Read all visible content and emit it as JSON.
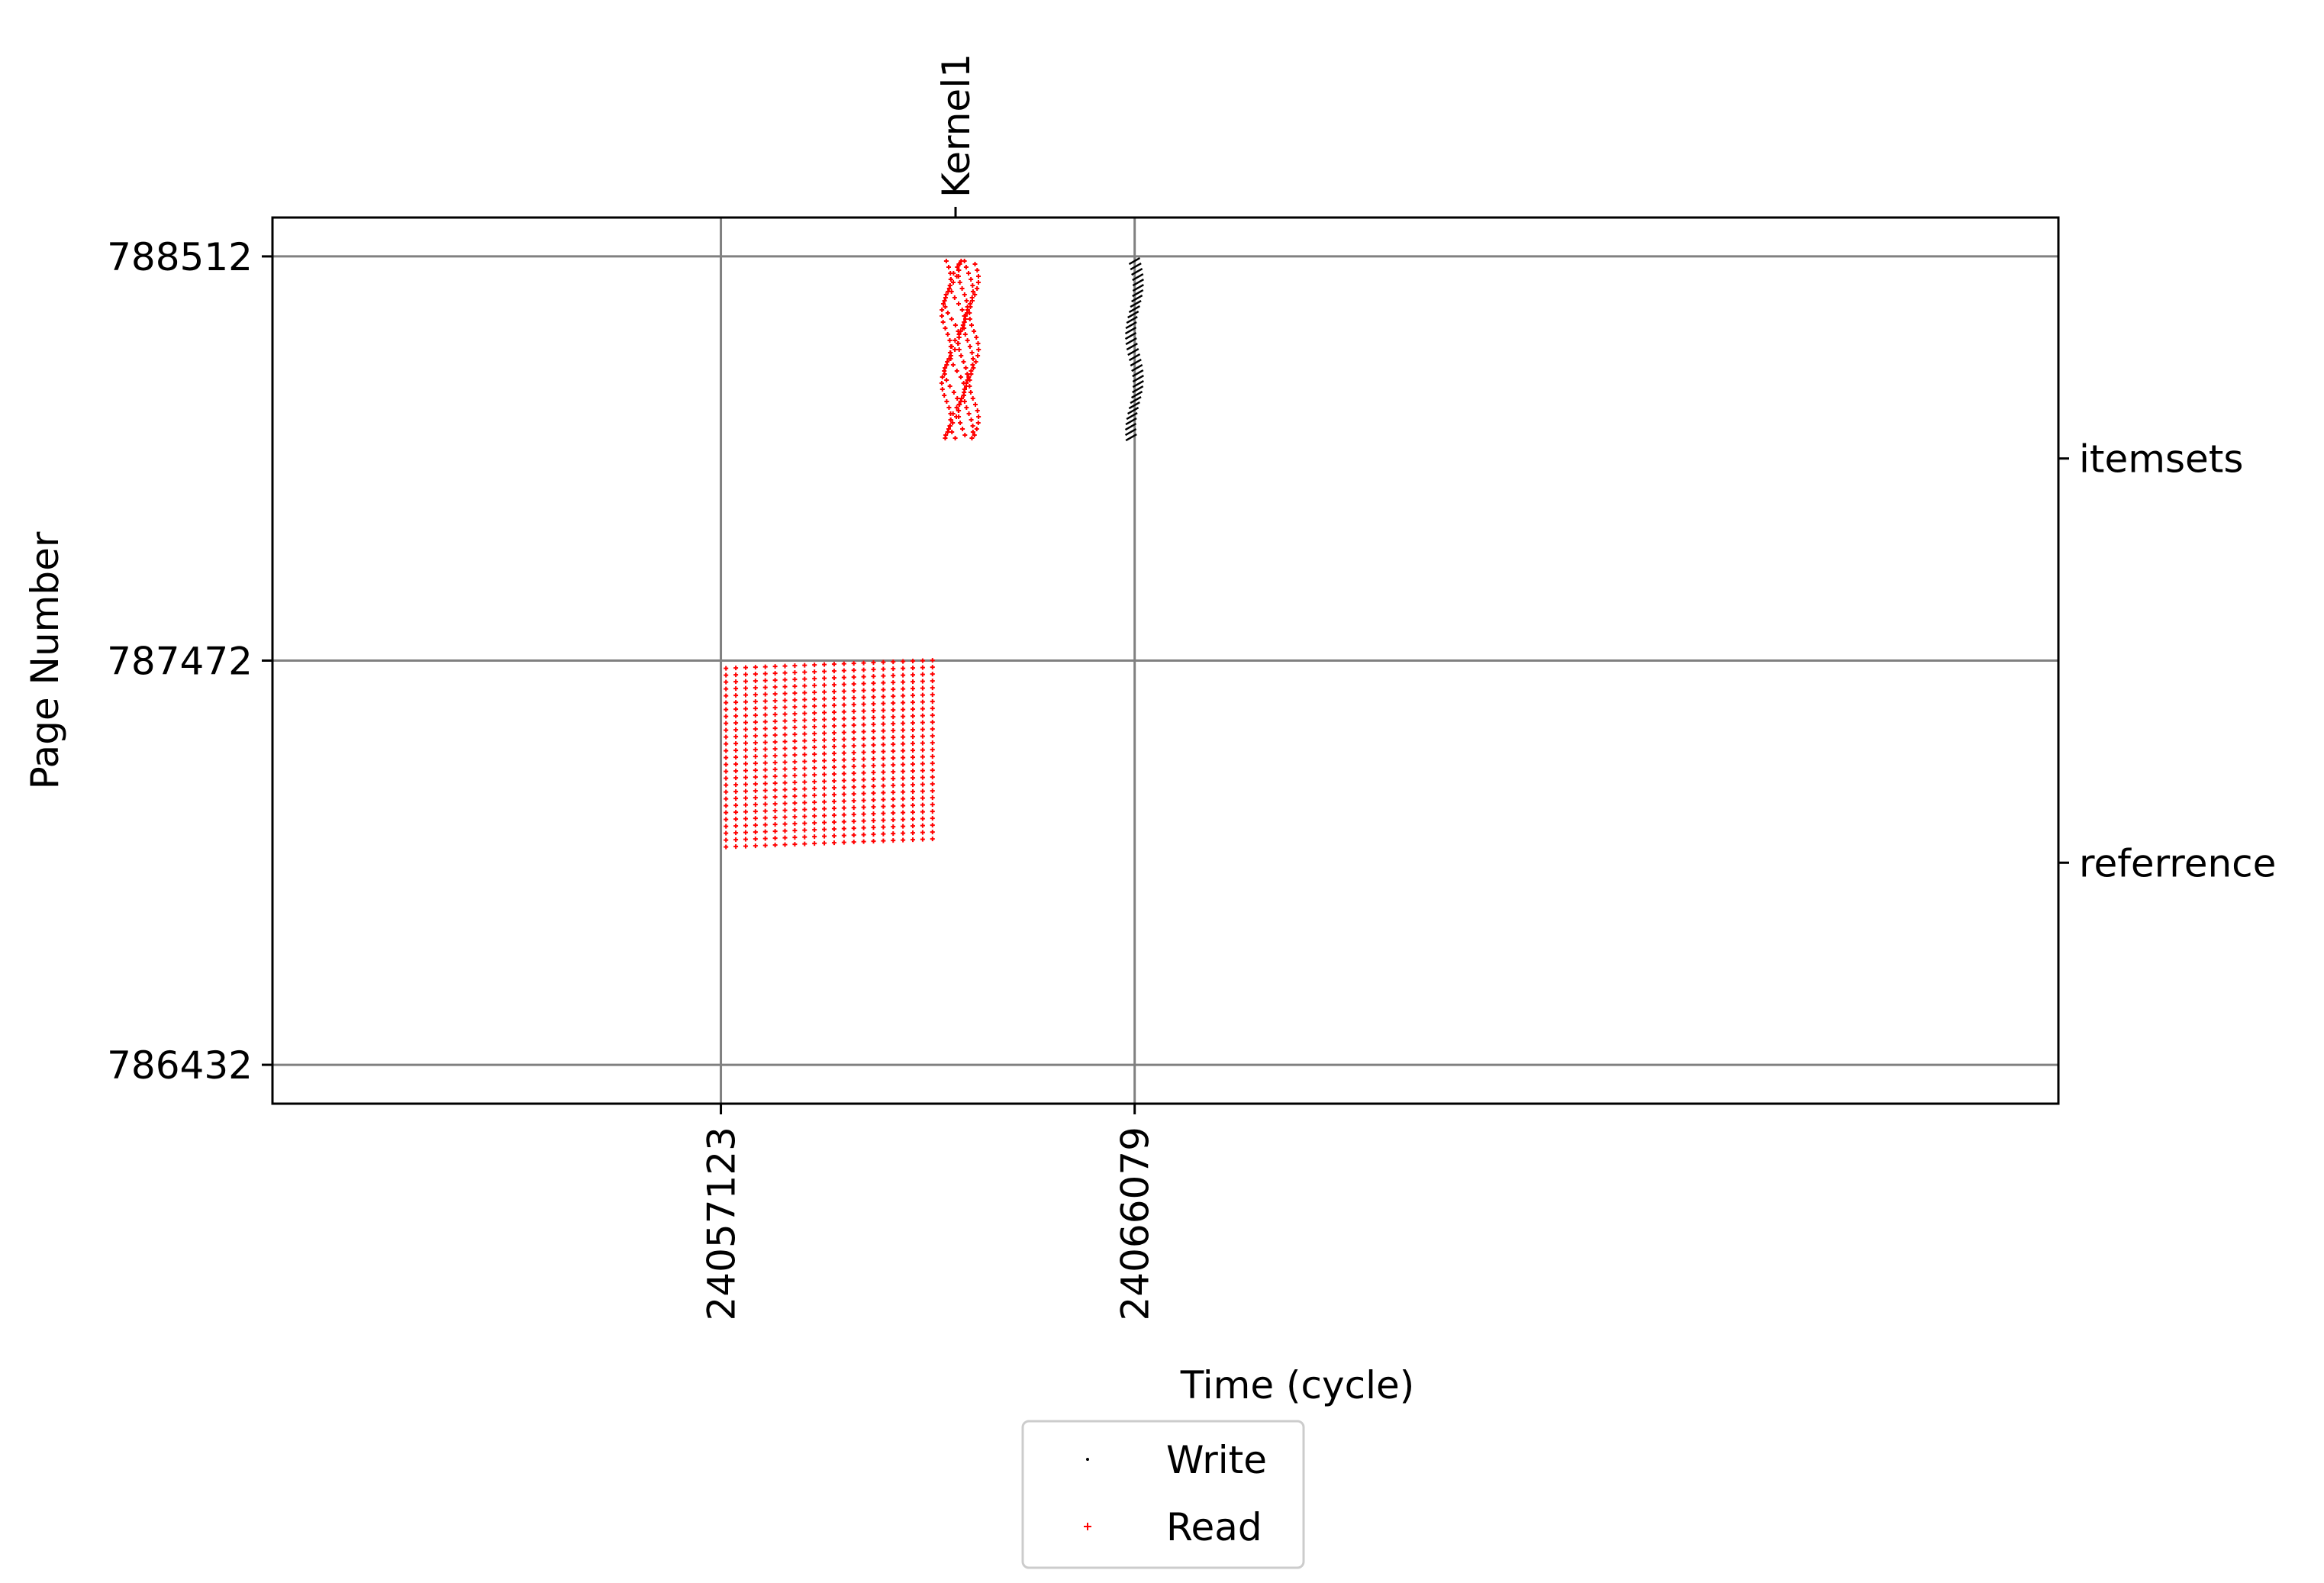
{
  "chart_data": {
    "type": "scatter",
    "title": "",
    "xlabel": "Time (cycle)",
    "ylabel": "Page Number",
    "xlim": [
      24047417,
      24086073
    ],
    "ylim": [
      786332,
      788612
    ],
    "x_ticks": [
      "24057123",
      "24066079"
    ],
    "y_ticks": [
      "786432",
      "787472",
      "788512"
    ],
    "y_tick_values": [
      786432,
      787472,
      788512
    ],
    "x_tick_values": [
      24057123,
      24066079
    ],
    "grid": true,
    "top_axis": {
      "ticks": [
        {
          "label": "Kernel1",
          "x": 24062202
        }
      ]
    },
    "right_axis": {
      "ticks": [
        {
          "label": "itemsets",
          "y": 787992
        },
        {
          "label": "referrence",
          "y": 786952
        }
      ]
    },
    "legend": {
      "placement": "bottom-center",
      "entries": [
        "Write",
        "Read"
      ]
    },
    "series": [
      {
        "name": "Write",
        "color": "#000000",
        "marker": "point",
        "clusters": [
          {
            "x_range": [
              24066000,
              24066150
            ],
            "y_range": [
              788040,
              788500
            ],
            "pattern": "diagonal-strokes"
          }
        ]
      },
      {
        "name": "Read",
        "color": "#ff0000",
        "marker": "plus",
        "clusters": [
          {
            "x_range": [
              24057233,
              24061703
            ],
            "y_range": [
              786992,
              787452
            ],
            "columns": 22,
            "pattern": "grid"
          },
          {
            "x_range": [
              24062002,
              24062602
            ],
            "y_range": [
              788040,
              788500
            ],
            "columns": 6,
            "pattern": "wavy-columns"
          }
        ]
      }
    ]
  }
}
